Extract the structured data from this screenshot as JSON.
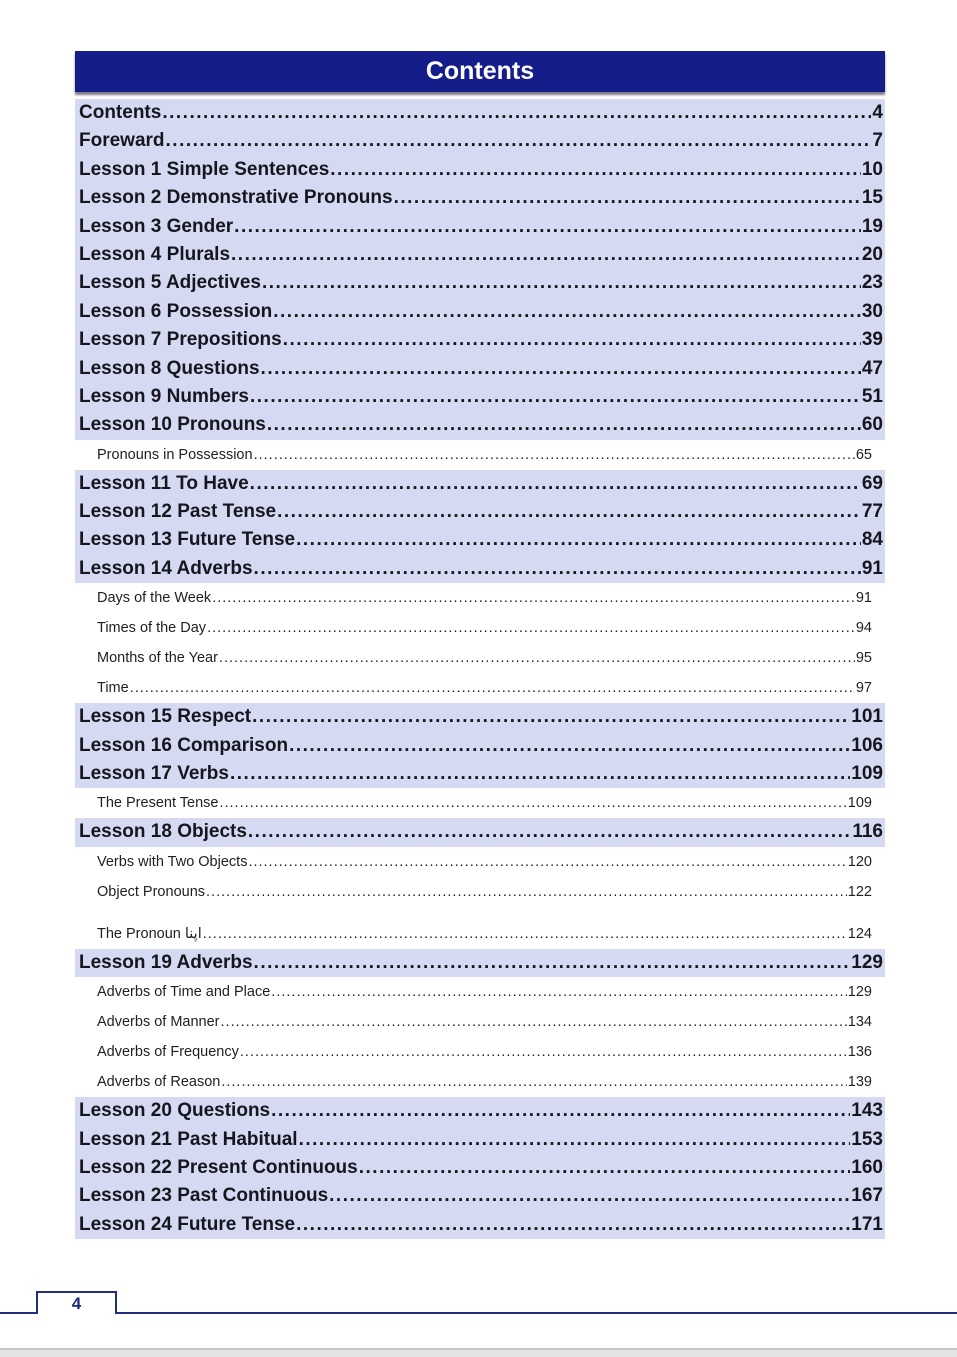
{
  "header": {
    "title": "Contents"
  },
  "footer": {
    "page_number": "4"
  },
  "colors": {
    "header_bar": "#141d89",
    "row_highlight": "#d5daf2",
    "footer_line": "#232e7d",
    "text": "#16161f"
  },
  "toc": {
    "entries": [
      {
        "label": "Contents",
        "page": "4",
        "level": 1
      },
      {
        "label": "Foreward",
        "page": "7",
        "level": 1
      },
      {
        "label": "Lesson 1 Simple Sentences",
        "page": "10",
        "level": 1
      },
      {
        "label": "Lesson 2 Demonstrative Pronouns",
        "page": "15",
        "level": 1
      },
      {
        "label": "Lesson 3 Gender",
        "page": "19",
        "level": 1
      },
      {
        "label": "Lesson 4 Plurals",
        "page": "20",
        "level": 1
      },
      {
        "label": "Lesson 5 Adjectives",
        "page": "23",
        "level": 1
      },
      {
        "label": "Lesson 6 Possession",
        "page": "30",
        "level": 1
      },
      {
        "label": "Lesson 7 Prepositions",
        "page": "39",
        "level": 1
      },
      {
        "label": "Lesson 8 Questions",
        "page": "47",
        "level": 1
      },
      {
        "label": "Lesson 9 Numbers",
        "page": "51",
        "level": 1
      },
      {
        "label": "Lesson 10 Pronouns",
        "page": "60",
        "level": 1
      },
      {
        "label": "Pronouns in Possession",
        "page": "65",
        "level": 2
      },
      {
        "label": "Lesson 11 To Have",
        "page": "69",
        "level": 1
      },
      {
        "label": "Lesson 12 Past Tense",
        "page": "77",
        "level": 1
      },
      {
        "label": "Lesson 13 Future Tense",
        "page": "84",
        "level": 1
      },
      {
        "label": "Lesson 14 Adverbs",
        "page": "91",
        "level": 1
      },
      {
        "label": "Days of the Week",
        "page": "91",
        "level": 2
      },
      {
        "label": "Times of the Day",
        "page": "94",
        "level": 2
      },
      {
        "label": "Months of the Year",
        "page": "95",
        "level": 2
      },
      {
        "label": "Time",
        "page": "97",
        "level": 2
      },
      {
        "label": "Lesson 15 Respect",
        "page": "101",
        "level": 1
      },
      {
        "label": "Lesson 16 Comparison",
        "page": "106",
        "level": 1
      },
      {
        "label": "Lesson 17 Verbs",
        "page": "109",
        "level": 1
      },
      {
        "label": "The Present Tense",
        "page": "109",
        "level": 2
      },
      {
        "label": "Lesson 18 Objects",
        "page": "116",
        "level": 1
      },
      {
        "label": "Verbs with Two Objects",
        "page": "120",
        "level": 2
      },
      {
        "label": "Object Pronouns",
        "page": "122",
        "level": 2
      },
      {
        "label": "The Pronoun اپنا",
        "page": "124",
        "level": 2
      },
      {
        "label": "Lesson 19 Adverbs",
        "page": "129",
        "level": 1
      },
      {
        "label": "Adverbs of Time and Place",
        "page": "129",
        "level": 2
      },
      {
        "label": "Adverbs of Manner",
        "page": "134",
        "level": 2
      },
      {
        "label": "Adverbs of Frequency",
        "page": "136",
        "level": 2
      },
      {
        "label": "Adverbs of Reason",
        "page": "139",
        "level": 2
      },
      {
        "label": "Lesson 20 Questions",
        "page": "143",
        "level": 1
      },
      {
        "label": "Lesson 21 Past Habitual",
        "page": "153",
        "level": 1
      },
      {
        "label": "Lesson 22 Present Continuous",
        "page": "160",
        "level": 1
      },
      {
        "label": "Lesson 23 Past Continuous",
        "page": "167",
        "level": 1
      },
      {
        "label": "Lesson 24 Future Tense",
        "page": "171",
        "level": 1
      }
    ]
  }
}
